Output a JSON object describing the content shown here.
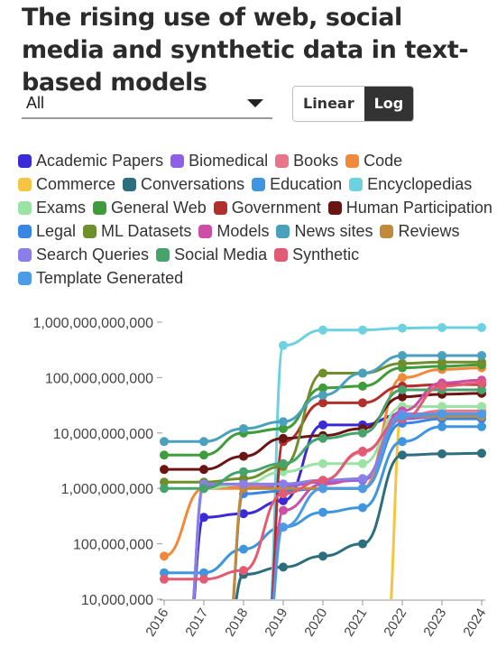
{
  "header": {
    "title": "The rising use of web, social media and synthetic data in text-based models"
  },
  "controls": {
    "filter_value": "All",
    "scale_options": [
      "Linear",
      "Log"
    ],
    "scale_selected": "Log"
  },
  "chart_data": {
    "type": "line",
    "title": "The rising use of web, social media and synthetic data in text-based models",
    "xlabel": "",
    "ylabel": "",
    "yscale": "log",
    "ylim": [
      10000000,
      1000000000000
    ],
    "y_ticks": [
      10000000,
      100000000,
      1000000000,
      10000000000,
      100000000000,
      1000000000000
    ],
    "y_tick_labels": [
      "10,000,000",
      "100,000,000",
      "1,000,000,000",
      "10,000,000,000",
      "100,000,000,000",
      "1,000,000,000,000"
    ],
    "x": [
      2016,
      2017,
      2018,
      2019,
      2020,
      2021,
      2022,
      2023,
      2024
    ],
    "x_tick_labels": [
      "2016",
      "2017",
      "2018",
      "2019",
      "2020",
      "2021",
      "2022",
      "2023",
      "2024"
    ],
    "legend_position": "top",
    "grid": false,
    "series": [
      {
        "name": "Academic Papers",
        "color": "#3b2bd6",
        "values": [
          null,
          300000000,
          350000000,
          600000000,
          14000000000,
          14000000000,
          22000000000,
          22000000000,
          22000000000
        ]
      },
      {
        "name": "Biomedical",
        "color": "#8f5fe8",
        "values": [
          null,
          1100000000,
          1100000000,
          1100000000,
          1300000000,
          1400000000,
          18000000000,
          20000000000,
          20000000000
        ]
      },
      {
        "name": "Books",
        "color": "#e8748a",
        "values": [
          null,
          1000000000,
          1100000000,
          1200000000,
          1400000000,
          4500000000,
          20000000000,
          25000000000,
          25000000000
        ]
      },
      {
        "name": "Code",
        "color": "#f08a3a",
        "values": [
          60000000,
          1000000000,
          1000000000,
          1000000000,
          1000000000,
          1000000000,
          100000000000,
          140000000000,
          150000000000
        ]
      },
      {
        "name": "Commerce",
        "color": "#f5c542",
        "values": [
          null,
          null,
          null,
          null,
          null,
          null,
          30000000000,
          30000000000,
          30000000000
        ]
      },
      {
        "name": "Conversations",
        "color": "#2d6e7e",
        "values": [
          null,
          null,
          28000000,
          38000000,
          60000000,
          100000000,
          4000000000,
          4200000000,
          4300000000
        ]
      },
      {
        "name": "Education",
        "color": "#3e95e0",
        "values": [
          30000000,
          30000000,
          80000000,
          200000000,
          370000000,
          450000000,
          7000000000,
          13000000000,
          13000000000
        ]
      },
      {
        "name": "Encyclopedias",
        "color": "#6dd1e0",
        "values": [
          null,
          null,
          null,
          380000000000,
          720000000000,
          720000000000,
          780000000000,
          800000000000,
          800000000000
        ]
      },
      {
        "name": "Exams",
        "color": "#9be3a5",
        "values": [
          null,
          1000000000,
          1200000000,
          2000000000,
          2800000000,
          2800000000,
          30000000000,
          30000000000,
          30000000000
        ]
      },
      {
        "name": "General Web",
        "color": "#3e9c3a",
        "values": [
          4000000000,
          4000000000,
          10000000000,
          12000000000,
          65000000000,
          70000000000,
          150000000000,
          160000000000,
          170000000000
        ]
      },
      {
        "name": "Government",
        "color": "#b2302b",
        "values": [
          null,
          null,
          null,
          7000000000,
          35000000000,
          35000000000,
          70000000000,
          75000000000,
          75000000000
        ]
      },
      {
        "name": "Human Participation",
        "color": "#6b1414",
        "values": [
          2200000000,
          2200000000,
          3800000000,
          8000000000,
          9000000000,
          12000000000,
          45000000000,
          50000000000,
          52000000000
        ]
      },
      {
        "name": "Legal",
        "color": "#3a86e6",
        "values": [
          null,
          null,
          800000000,
          900000000,
          1000000000,
          1000000000,
          15000000000,
          18000000000,
          18000000000
        ]
      },
      {
        "name": "ML Datasets",
        "color": "#6f8f2c",
        "values": [
          1300000000,
          1300000000,
          1500000000,
          2500000000,
          120000000000,
          120000000000,
          180000000000,
          190000000000,
          190000000000
        ]
      },
      {
        "name": "Models",
        "color": "#cc4fa3",
        "values": [
          null,
          null,
          null,
          400000000,
          1200000000,
          1500000000,
          25000000000,
          80000000000,
          90000000000
        ]
      },
      {
        "name": "News sites",
        "color": "#4aa0bd",
        "values": [
          7000000000,
          7000000000,
          12000000000,
          16000000000,
          48000000000,
          120000000000,
          250000000000,
          250000000000,
          250000000000
        ]
      },
      {
        "name": "Reviews",
        "color": "#c08a3a",
        "values": [
          null,
          null,
          1000000000,
          1000000000,
          1000000000,
          1000000000,
          20000000000,
          20000000000,
          20000000000
        ]
      },
      {
        "name": "Search Queries",
        "color": "#8a7fe8",
        "values": [
          null,
          1200000000,
          1200000000,
          1200000000,
          1400000000,
          1500000000,
          22000000000,
          22000000000,
          22000000000
        ]
      },
      {
        "name": "Social Media",
        "color": "#47a36c",
        "values": [
          1000000000,
          1000000000,
          2000000000,
          2800000000,
          8000000000,
          10000000000,
          60000000000,
          60000000000,
          60000000000
        ]
      },
      {
        "name": "Synthetic",
        "color": "#e25b75",
        "values": [
          23000000,
          23000000,
          33000000,
          800000000,
          1400000000,
          4700000000,
          18000000000,
          70000000000,
          80000000000
        ]
      },
      {
        "name": "Template Generated",
        "color": "#4b9be6",
        "values": [
          null,
          null,
          null,
          200000000,
          1000000000,
          1000000000,
          20000000000,
          22000000000,
          22000000000
        ]
      }
    ]
  }
}
